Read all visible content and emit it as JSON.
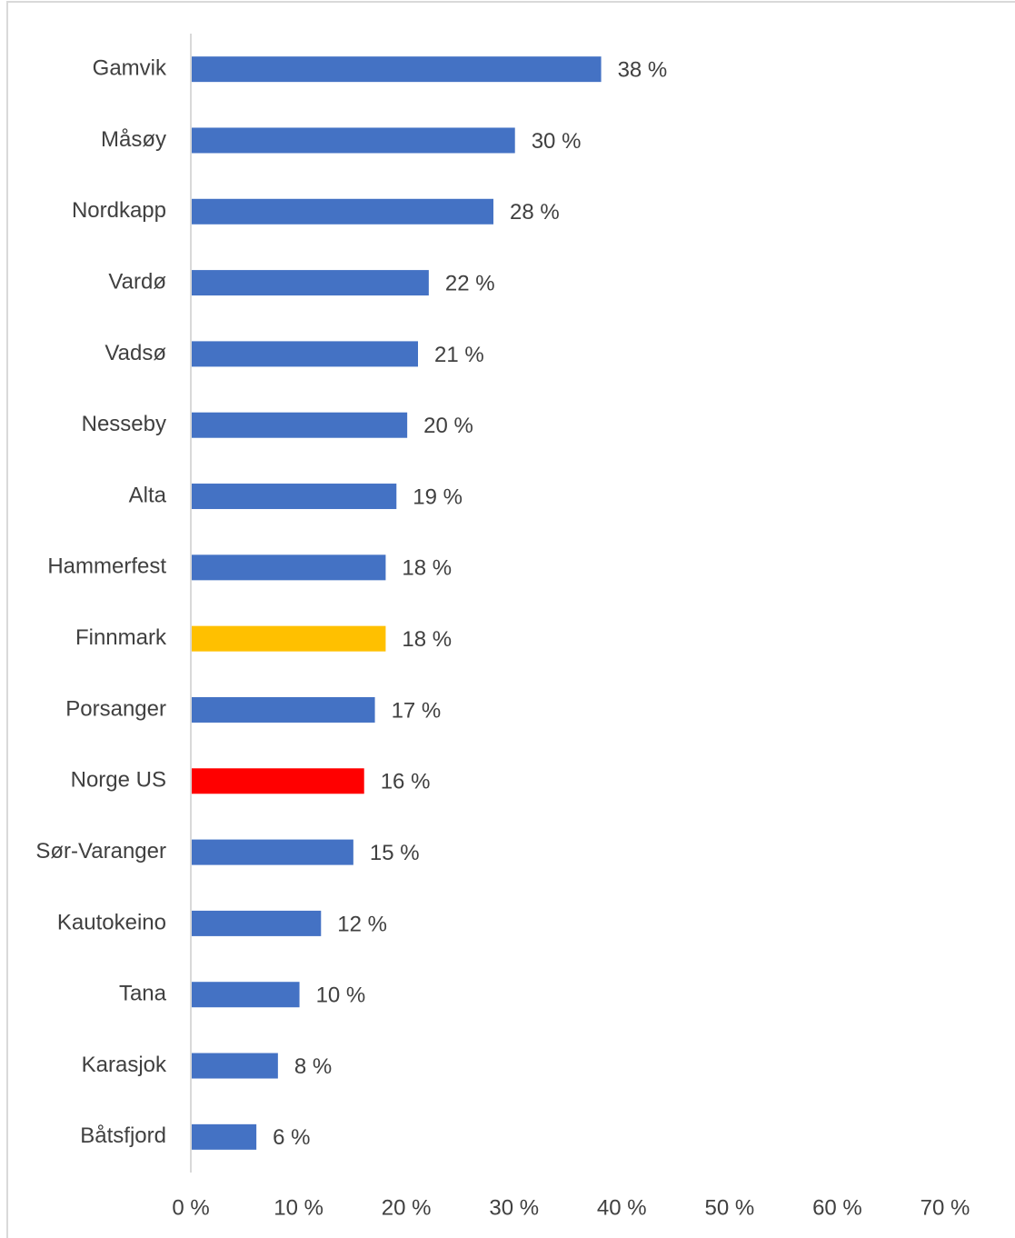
{
  "chart_data": {
    "type": "barh",
    "categories": [
      "Gamvik",
      "Måsøy",
      "Nordkapp",
      "Vardø",
      "Vadsø",
      "Nesseby",
      "Alta",
      "Hammerfest",
      "Finnmark",
      "Porsanger",
      "Norge US",
      "Sør-Varanger",
      "Kautokeino",
      "Tana",
      "Karasjok",
      "Båtsfjord"
    ],
    "values": [
      38,
      30,
      28,
      22,
      21,
      20,
      19,
      18,
      18,
      17,
      16,
      15,
      12,
      10,
      8,
      6
    ],
    "value_labels": [
      "38 %",
      "30 %",
      "28 %",
      "22 %",
      "21 %",
      "20 %",
      "19 %",
      "18 %",
      "18 %",
      "17 %",
      "16 %",
      "15 %",
      "12 %",
      "10 %",
      "8 %",
      "6 %"
    ],
    "colors": [
      "#4472c4",
      "#4472c4",
      "#4472c4",
      "#4472c4",
      "#4472c4",
      "#4472c4",
      "#4472c4",
      "#4472c4",
      "#ffc000",
      "#4472c4",
      "#ff0000",
      "#4472c4",
      "#4472c4",
      "#4472c4",
      "#4472c4",
      "#4472c4"
    ],
    "xlim": [
      0,
      70
    ],
    "xticks": [
      {
        "value": 0,
        "label": "0 %"
      },
      {
        "value": 10,
        "label": "10 %"
      },
      {
        "value": 20,
        "label": "20 %"
      },
      {
        "value": 30,
        "label": "30 %"
      },
      {
        "value": 40,
        "label": "40 %"
      },
      {
        "value": 50,
        "label": "50 %"
      },
      {
        "value": 60,
        "label": "60 %"
      },
      {
        "value": 70,
        "label": "70 %"
      }
    ],
    "grid": false
  }
}
